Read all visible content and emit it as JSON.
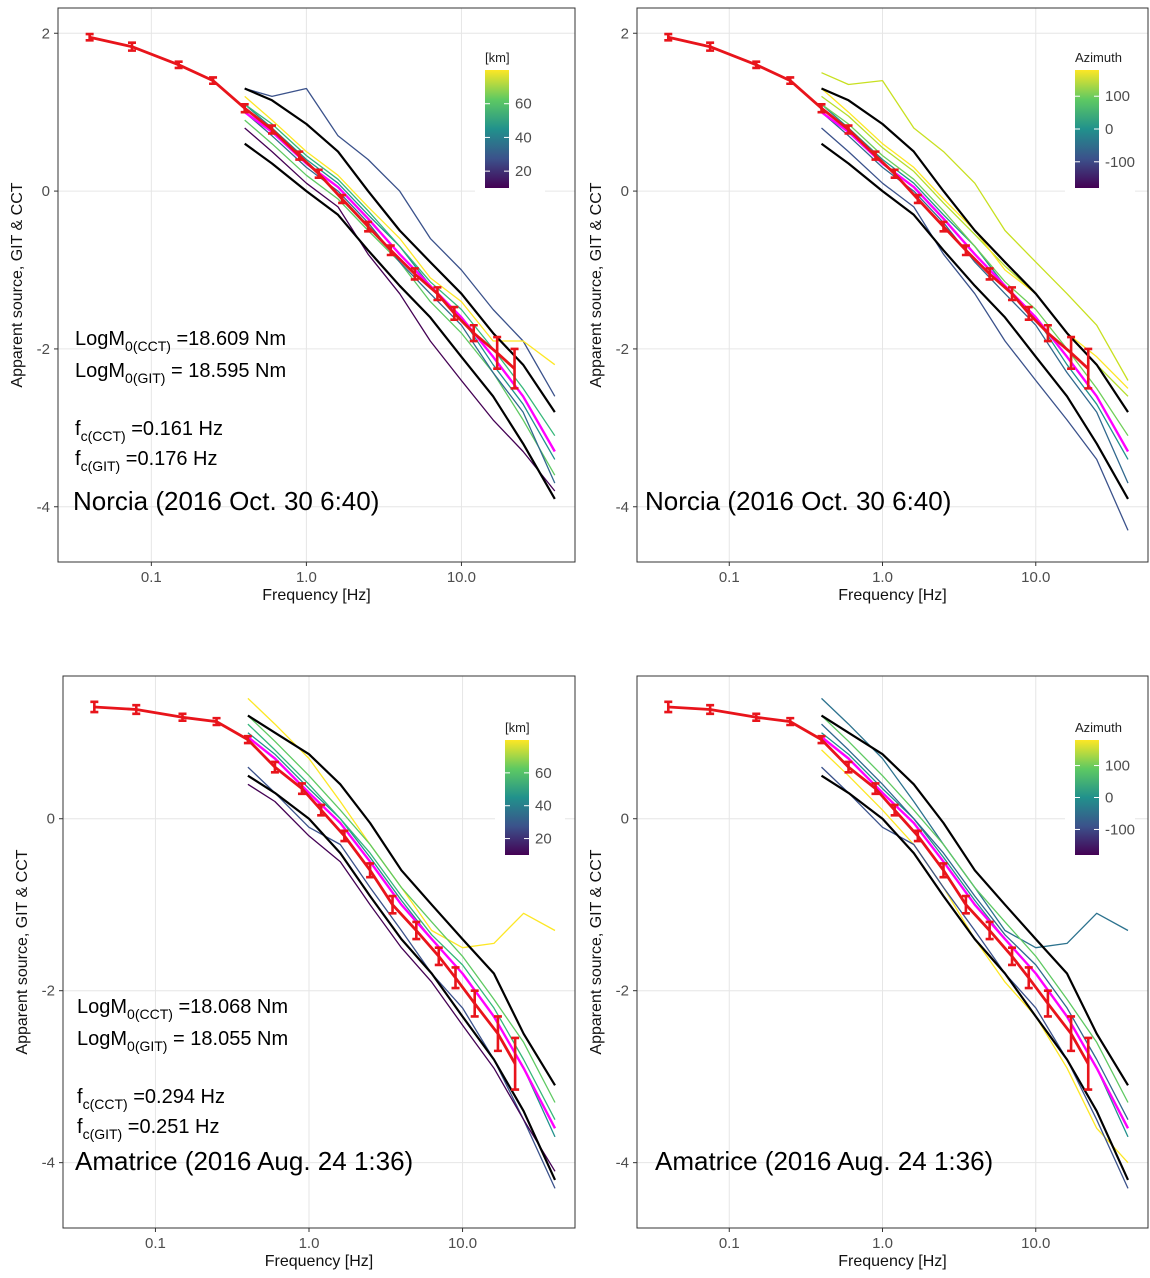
{
  "chart_data": [
    {
      "type": "line",
      "title": "Norcia (2016 Oct. 30 6:40)",
      "xlabel": "Frequency [Hz]",
      "ylabel": "Apparent source, GIT & CCT",
      "annotations": [
        {
          "main": "LogM",
          "sub": "0(CCT)",
          "rest": " =18.609 Nm"
        },
        {
          "main": "LogM",
          "sub": "0(GIT)",
          "rest": " = 18.595 Nm"
        },
        {
          "main": "f",
          "sub": "c(CCT)",
          "rest": " =0.161 Hz"
        },
        {
          "main": "f",
          "sub": "c(GIT)",
          "rest": " =0.176 Hz"
        }
      ],
      "xlog": true,
      "xlim": [
        0.025,
        54
      ],
      "xticks": [
        0.1,
        {
          "value": 1,
          "label": "1.0"
        },
        {
          "value": 10,
          "label": "10.0"
        }
      ],
      "ylim": [
        -4.7,
        2.32
      ],
      "yticks": [
        -4,
        -2,
        0,
        2
      ],
      "grid": true,
      "colorbar": {
        "title": "[km]",
        "lim": [
          10,
          80
        ],
        "ticks": [
          20,
          40,
          60
        ],
        "colormap": [
          "#440154",
          "#3b528b",
          "#21918c",
          "#5ec962",
          "#fde725"
        ]
      },
      "x": [
        0.4,
        0.6,
        1,
        1.6,
        2.5,
        4,
        6.3,
        10,
        16,
        25,
        40
      ],
      "lines": [
        {
          "color": "#3b528b",
          "values": [
            1.3,
            1.2,
            1.3,
            0.7,
            0.4,
            0.0,
            -0.6,
            -1.0,
            -1.5,
            -1.9,
            -2.6
          ]
        },
        {
          "color": "#21918c",
          "values": [
            1.1,
            0.8,
            0.4,
            0.1,
            -0.3,
            -0.7,
            -1.2,
            -1.6,
            -2.2,
            -2.7,
            -3.4
          ]
        },
        {
          "color": "#5ec962",
          "values": [
            0.9,
            0.6,
            0.2,
            -0.1,
            -0.5,
            -0.9,
            -1.4,
            -1.8,
            -2.3,
            -2.9,
            -3.6
          ]
        },
        {
          "color": "#440154",
          "values": [
            0.8,
            0.5,
            0.1,
            -0.2,
            -0.8,
            -1.3,
            -1.9,
            -2.4,
            -2.9,
            -3.3,
            -3.8
          ]
        },
        {
          "color": "#fde725",
          "values": [
            1.2,
            0.9,
            0.5,
            0.2,
            -0.2,
            -0.6,
            -1.1,
            -1.4,
            -1.9,
            -1.9,
            -2.2
          ]
        },
        {
          "color": "#31688e",
          "values": [
            1.0,
            0.7,
            0.3,
            0.0,
            -0.4,
            -0.9,
            -1.3,
            -1.7,
            -2.3,
            -2.8,
            -3.7
          ]
        },
        {
          "color": "#35b779",
          "values": [
            1.1,
            0.85,
            0.45,
            0.15,
            -0.25,
            -0.7,
            -1.15,
            -1.5,
            -2.0,
            -2.5,
            -3.1
          ]
        },
        {
          "color": "#000000",
          "values": [
            1.3,
            1.15,
            0.85,
            0.5,
            0.0,
            -0.5,
            -0.9,
            -1.3,
            -1.8,
            -2.2,
            -2.8
          ]
        },
        {
          "color": "#000000",
          "values": [
            0.6,
            0.35,
            0.0,
            -0.3,
            -0.75,
            -1.2,
            -1.6,
            -2.1,
            -2.6,
            -3.2,
            -3.9
          ]
        },
        {
          "color": "#ff00ff",
          "values": [
            1.0,
            0.75,
            0.35,
            0.05,
            -0.35,
            -0.8,
            -1.2,
            -1.6,
            -2.1,
            -2.6,
            -3.3
          ]
        }
      ],
      "git": {
        "color": "#e8141b",
        "x": [
          0.04,
          0.075,
          0.15,
          0.25,
          0.4,
          0.6,
          0.9,
          1.2,
          1.7,
          2.5,
          3.5,
          5,
          7,
          9,
          12,
          17,
          22
        ],
        "values": [
          1.95,
          1.83,
          1.6,
          1.4,
          1.05,
          0.78,
          0.45,
          0.22,
          -0.1,
          -0.45,
          -0.75,
          -1.05,
          -1.3,
          -1.55,
          -1.8,
          -2.05,
          -2.25
        ],
        "errors": [
          0.04,
          0.05,
          0.04,
          0.04,
          0.05,
          0.05,
          0.05,
          0.05,
          0.05,
          0.06,
          0.06,
          0.07,
          0.08,
          0.08,
          0.1,
          0.2,
          0.25
        ]
      }
    },
    {
      "type": "line",
      "title": "Norcia (2016 Oct. 30 6:40)",
      "xlabel": "Frequency [Hz]",
      "ylabel": "Apparent source, GIT & CCT",
      "xlog": true,
      "xlim": [
        0.025,
        54
      ],
      "xticks": [
        0.1,
        {
          "value": 1,
          "label": "1.0"
        },
        {
          "value": 10,
          "label": "10.0"
        }
      ],
      "ylim": [
        -4.7,
        2.32
      ],
      "yticks": [
        -4,
        -2,
        0,
        2
      ],
      "grid": true,
      "colorbar": {
        "title": "Azimuth",
        "lim": [
          -180,
          180
        ],
        "ticks": [
          -100,
          0,
          100
        ],
        "colormap": [
          "#440154",
          "#3b528b",
          "#21918c",
          "#5ec962",
          "#fde725"
        ]
      },
      "x": [
        0.4,
        0.6,
        1,
        1.6,
        2.5,
        4,
        6.3,
        10,
        16,
        25,
        40
      ],
      "lines": [
        {
          "color": "#c8e020",
          "values": [
            1.5,
            1.35,
            1.4,
            0.8,
            0.5,
            0.1,
            -0.5,
            -0.9,
            -1.3,
            -1.7,
            -2.4
          ]
        },
        {
          "color": "#21918c",
          "values": [
            1.1,
            0.8,
            0.4,
            0.1,
            -0.3,
            -0.7,
            -1.2,
            -1.6,
            -2.2,
            -2.7,
            -3.4
          ]
        },
        {
          "color": "#b5de2b",
          "values": [
            1.2,
            0.95,
            0.55,
            0.25,
            -0.15,
            -0.55,
            -0.95,
            -1.3,
            -1.8,
            -2.2,
            -2.6
          ]
        },
        {
          "color": "#3b528b",
          "values": [
            0.8,
            0.5,
            0.1,
            -0.2,
            -0.8,
            -1.3,
            -1.9,
            -2.4,
            -2.9,
            -3.4,
            -4.3
          ]
        },
        {
          "color": "#fde725",
          "values": [
            1.3,
            1.0,
            0.6,
            0.3,
            -0.1,
            -0.5,
            -1.0,
            -1.3,
            -1.8,
            -2.1,
            -2.5
          ]
        },
        {
          "color": "#31688e",
          "values": [
            1.0,
            0.7,
            0.3,
            0.0,
            -0.4,
            -0.9,
            -1.3,
            -1.7,
            -2.3,
            -2.8,
            -3.7
          ]
        },
        {
          "color": "#6ece58",
          "values": [
            1.1,
            0.85,
            0.45,
            0.15,
            -0.25,
            -0.7,
            -1.15,
            -1.5,
            -2.0,
            -2.5,
            -3.1
          ]
        },
        {
          "color": "#000000",
          "values": [
            1.3,
            1.15,
            0.85,
            0.5,
            0.0,
            -0.5,
            -0.9,
            -1.3,
            -1.8,
            -2.2,
            -2.8
          ]
        },
        {
          "color": "#000000",
          "values": [
            0.6,
            0.35,
            0.0,
            -0.3,
            -0.75,
            -1.2,
            -1.6,
            -2.1,
            -2.6,
            -3.2,
            -3.9
          ]
        },
        {
          "color": "#ff00ff",
          "values": [
            1.0,
            0.75,
            0.35,
            0.05,
            -0.35,
            -0.8,
            -1.2,
            -1.6,
            -2.1,
            -2.6,
            -3.3
          ]
        }
      ],
      "git": {
        "color": "#e8141b",
        "x": [
          0.04,
          0.075,
          0.15,
          0.25,
          0.4,
          0.6,
          0.9,
          1.2,
          1.7,
          2.5,
          3.5,
          5,
          7,
          9,
          12,
          17,
          22
        ],
        "values": [
          1.95,
          1.83,
          1.6,
          1.4,
          1.05,
          0.78,
          0.45,
          0.22,
          -0.1,
          -0.45,
          -0.75,
          -1.05,
          -1.3,
          -1.55,
          -1.8,
          -2.05,
          -2.25
        ],
        "errors": [
          0.04,
          0.05,
          0.04,
          0.04,
          0.05,
          0.05,
          0.05,
          0.05,
          0.05,
          0.06,
          0.06,
          0.07,
          0.08,
          0.08,
          0.1,
          0.2,
          0.25
        ]
      }
    },
    {
      "type": "line",
      "title": "Amatrice (2016 Aug. 24 1:36)",
      "xlabel": "Frequency [Hz]",
      "ylabel": "Apparent source, GIT & CCT",
      "annotations": [
        {
          "main": "LogM",
          "sub": "0(CCT)",
          "rest": " =18.068 Nm"
        },
        {
          "main": "LogM",
          "sub": "0(GIT)",
          "rest": " = 18.055 Nm"
        },
        {
          "main": "f",
          "sub": "c(CCT)",
          "rest": " =0.294 Hz"
        },
        {
          "main": "f",
          "sub": "c(GIT)",
          "rest": " =0.251 Hz"
        }
      ],
      "xlog": true,
      "xlim": [
        0.025,
        54
      ],
      "xticks": [
        0.1,
        {
          "value": 1,
          "label": "1.0"
        },
        {
          "value": 10,
          "label": "10.0"
        }
      ],
      "ylim": [
        -4.76,
        1.66
      ],
      "yticks": [
        -4,
        -2,
        0
      ],
      "grid": true,
      "colorbar": {
        "title": "[km]",
        "lim": [
          10,
          80
        ],
        "ticks": [
          20,
          40,
          60
        ],
        "colormap": [
          "#440154",
          "#3b528b",
          "#21918c",
          "#5ec962",
          "#fde725"
        ]
      },
      "x": [
        0.4,
        0.6,
        1,
        1.6,
        2.5,
        4,
        6.3,
        10,
        16,
        25,
        40
      ],
      "lines": [
        {
          "color": "#fde725",
          "values": [
            1.4,
            1.1,
            0.7,
            0.2,
            -0.3,
            -0.8,
            -1.3,
            -1.5,
            -1.45,
            -1.1,
            -1.3
          ]
        },
        {
          "color": "#21918c",
          "values": [
            1.0,
            0.75,
            0.35,
            0.0,
            -0.45,
            -0.95,
            -1.4,
            -1.8,
            -2.3,
            -2.9,
            -3.7
          ]
        },
        {
          "color": "#3b528b",
          "values": [
            0.6,
            0.3,
            -0.1,
            -0.3,
            -0.8,
            -1.3,
            -1.8,
            -2.2,
            -2.8,
            -3.5,
            -4.3
          ]
        },
        {
          "color": "#5ec962",
          "values": [
            1.2,
            0.9,
            0.5,
            0.1,
            -0.3,
            -0.8,
            -1.2,
            -1.6,
            -2.1,
            -2.6,
            -3.3
          ]
        },
        {
          "color": "#440154",
          "values": [
            0.4,
            0.2,
            -0.2,
            -0.5,
            -1.0,
            -1.5,
            -1.9,
            -2.4,
            -2.9,
            -3.5,
            -4.1
          ]
        },
        {
          "color": "#35b779",
          "values": [
            1.1,
            0.8,
            0.4,
            0.0,
            -0.4,
            -0.9,
            -1.35,
            -1.7,
            -2.2,
            -2.8,
            -3.5
          ]
        },
        {
          "color": "#000000",
          "values": [
            1.2,
            1.0,
            0.75,
            0.4,
            -0.05,
            -0.6,
            -1.0,
            -1.4,
            -1.8,
            -2.5,
            -3.1
          ]
        },
        {
          "color": "#000000",
          "values": [
            0.5,
            0.3,
            0.0,
            -0.4,
            -0.9,
            -1.4,
            -1.8,
            -2.3,
            -2.8,
            -3.4,
            -4.2
          ]
        },
        {
          "color": "#ff00ff",
          "values": [
            0.95,
            0.7,
            0.3,
            -0.05,
            -0.5,
            -1.0,
            -1.4,
            -1.8,
            -2.3,
            -2.9,
            -3.6
          ]
        }
      ],
      "git": {
        "color": "#e8141b",
        "x": [
          0.04,
          0.075,
          0.15,
          0.25,
          0.4,
          0.6,
          0.9,
          1.2,
          1.7,
          2.5,
          3.5,
          5,
          7,
          9,
          12,
          17,
          22
        ],
        "values": [
          1.3,
          1.27,
          1.18,
          1.13,
          0.92,
          0.6,
          0.35,
          0.1,
          -0.2,
          -0.6,
          -1.0,
          -1.3,
          -1.6,
          -1.85,
          -2.15,
          -2.5,
          -2.85
        ],
        "errors": [
          0.06,
          0.05,
          0.04,
          0.04,
          0.04,
          0.06,
          0.06,
          0.06,
          0.06,
          0.08,
          0.1,
          0.1,
          0.1,
          0.12,
          0.15,
          0.2,
          0.3
        ]
      }
    },
    {
      "type": "line",
      "title": "Amatrice (2016 Aug. 24 1:36)",
      "xlabel": "Frequency [Hz]",
      "ylabel": "Apparent source, GIT & CCT",
      "xlog": true,
      "xlim": [
        0.025,
        54
      ],
      "xticks": [
        0.1,
        {
          "value": 1,
          "label": "1.0"
        },
        {
          "value": 10,
          "label": "10.0"
        }
      ],
      "ylim": [
        -4.76,
        1.66
      ],
      "yticks": [
        -4,
        -2,
        0
      ],
      "grid": true,
      "colorbar": {
        "title": "Azimuth",
        "lim": [
          -180,
          180
        ],
        "ticks": [
          -100,
          0,
          100
        ],
        "colormap": [
          "#440154",
          "#3b528b",
          "#21918c",
          "#5ec962",
          "#fde725"
        ]
      },
      "x": [
        0.4,
        0.6,
        1,
        1.6,
        2.5,
        4,
        6.3,
        10,
        16,
        25,
        40
      ],
      "lines": [
        {
          "color": "#2c728e",
          "values": [
            1.4,
            1.1,
            0.7,
            0.2,
            -0.3,
            -0.8,
            -1.3,
            -1.5,
            -1.45,
            -1.1,
            -1.3
          ]
        },
        {
          "color": "#fde725",
          "values": [
            0.8,
            0.5,
            0.1,
            -0.3,
            -0.8,
            -1.4,
            -1.9,
            -2.3,
            -2.9,
            -3.6,
            -4.0
          ]
        },
        {
          "color": "#21918c",
          "values": [
            1.0,
            0.75,
            0.35,
            0.0,
            -0.45,
            -0.95,
            -1.4,
            -1.8,
            -2.3,
            -2.9,
            -3.7
          ]
        },
        {
          "color": "#3b528b",
          "values": [
            0.6,
            0.3,
            -0.1,
            -0.3,
            -0.8,
            -1.3,
            -1.8,
            -2.2,
            -2.8,
            -3.5,
            -4.3
          ]
        },
        {
          "color": "#5ec962",
          "values": [
            1.2,
            0.9,
            0.5,
            0.1,
            -0.3,
            -0.8,
            -1.2,
            -1.6,
            -2.1,
            -2.6,
            -3.3
          ]
        },
        {
          "color": "#31688e",
          "values": [
            1.1,
            0.8,
            0.4,
            0.0,
            -0.4,
            -0.9,
            -1.35,
            -1.7,
            -2.2,
            -2.8,
            -3.5
          ]
        },
        {
          "color": "#000000",
          "values": [
            1.2,
            1.0,
            0.75,
            0.4,
            -0.05,
            -0.6,
            -1.0,
            -1.4,
            -1.8,
            -2.5,
            -3.1
          ]
        },
        {
          "color": "#000000",
          "values": [
            0.5,
            0.3,
            0.0,
            -0.4,
            -0.9,
            -1.4,
            -1.8,
            -2.3,
            -2.8,
            -3.4,
            -4.2
          ]
        },
        {
          "color": "#ff00ff",
          "values": [
            0.95,
            0.7,
            0.3,
            -0.05,
            -0.5,
            -1.0,
            -1.4,
            -1.8,
            -2.3,
            -2.9,
            -3.6
          ]
        }
      ],
      "git": {
        "color": "#e8141b",
        "x": [
          0.04,
          0.075,
          0.15,
          0.25,
          0.4,
          0.6,
          0.9,
          1.2,
          1.7,
          2.5,
          3.5,
          5,
          7,
          9,
          12,
          17,
          22
        ],
        "values": [
          1.3,
          1.27,
          1.18,
          1.13,
          0.92,
          0.6,
          0.35,
          0.1,
          -0.2,
          -0.6,
          -1.0,
          -1.3,
          -1.6,
          -1.85,
          -2.15,
          -2.5,
          -2.85
        ],
        "errors": [
          0.06,
          0.05,
          0.04,
          0.04,
          0.04,
          0.06,
          0.06,
          0.06,
          0.06,
          0.08,
          0.1,
          0.1,
          0.1,
          0.12,
          0.15,
          0.2,
          0.3
        ]
      }
    }
  ]
}
